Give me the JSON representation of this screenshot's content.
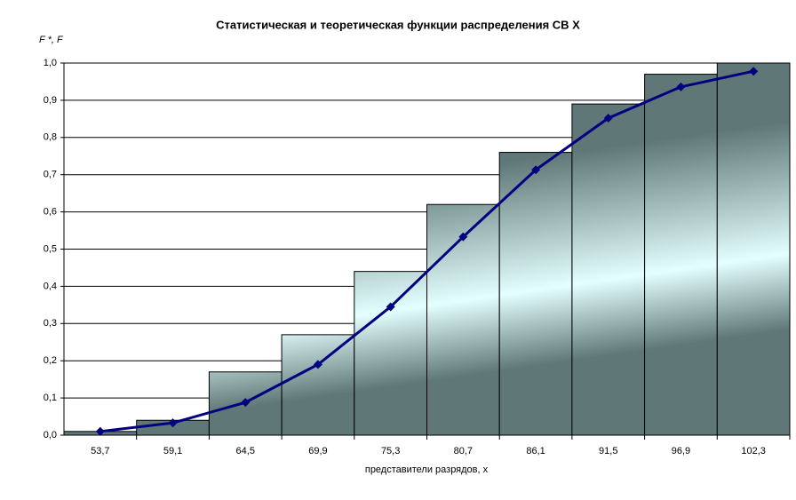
{
  "chart_data": {
    "type": "bar",
    "title": "Статистическая и теоретическая функции распределения СВ X",
    "y_label": "F *, F",
    "x_label": "представители разрядов, x",
    "categories": [
      "53,7",
      "59,1",
      "64,5",
      "69,9",
      "75,3",
      "80,7",
      "86,1",
      "91,5",
      "96,9",
      "102,3"
    ],
    "series": [
      {
        "type": "bar",
        "color": "#5f7777",
        "values": [
          0.01,
          0.04,
          0.17,
          0.27,
          0.44,
          0.62,
          0.76,
          0.89,
          0.97,
          1.0
        ]
      },
      {
        "type": "line",
        "color": "#000080",
        "values": [
          0.01,
          0.033,
          0.088,
          0.19,
          0.345,
          0.533,
          0.713,
          0.852,
          0.936,
          0.978
        ]
      }
    ],
    "ylim": [
      0,
      1
    ],
    "yticks": [
      {
        "value": 0,
        "label": "0,0"
      },
      {
        "value": 0.1,
        "label": "0,1"
      },
      {
        "value": 0.2,
        "label": "0,2"
      },
      {
        "value": 0.3,
        "label": "0,3"
      },
      {
        "value": 0.4,
        "label": "0,4"
      },
      {
        "value": 0.5,
        "label": "0,5"
      },
      {
        "value": 0.6,
        "label": "0,6"
      },
      {
        "value": 0.7,
        "label": "0,7"
      },
      {
        "value": 0.8,
        "label": "0,8"
      },
      {
        "value": 0.9,
        "label": "0,9"
      },
      {
        "value": 1,
        "label": "1,0"
      }
    ],
    "grid": true
  }
}
